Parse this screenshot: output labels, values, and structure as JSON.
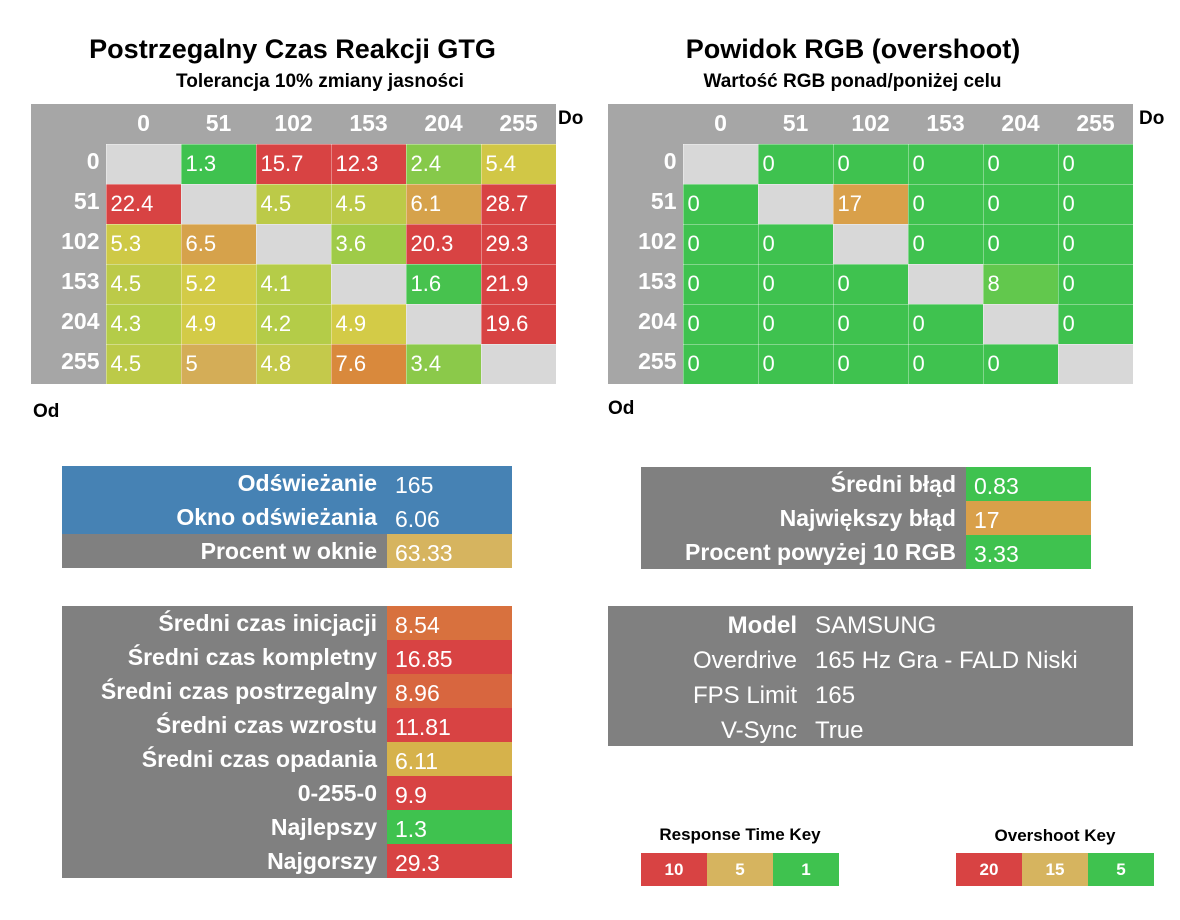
{
  "colors": {
    "green": "#3fc24f",
    "red": "#d84343",
    "gold": "#d6b45f",
    "orange": "#d9893c",
    "gray_header": "#a6a6a6",
    "diag": "#d8d8d8",
    "blue": "#4682b4",
    "dark_gray": "#808080"
  },
  "chart_data": [
    {
      "type": "heatmap",
      "title": "Postrzegalny Czas Reakcji GTG",
      "subtitle": "Tolerancja 10% zmiany jasności",
      "xlabel": "Do",
      "ylabel": "Od",
      "x": [
        "0",
        "51",
        "102",
        "153",
        "204",
        "255"
      ],
      "y": [
        "0",
        "51",
        "102",
        "153",
        "204",
        "255"
      ],
      "values": [
        [
          null,
          "1.3",
          "15.7",
          "12.3",
          "2.4",
          "5.4"
        ],
        [
          "22.4",
          null,
          "4.5",
          "4.5",
          "6.1",
          "28.7"
        ],
        [
          "5.3",
          "6.5",
          null,
          "3.6",
          "20.3",
          "29.3"
        ],
        [
          "4.5",
          "5.2",
          "4.1",
          null,
          "1.6",
          "21.9"
        ],
        [
          "4.3",
          "4.9",
          "4.2",
          "4.9",
          null,
          "19.6"
        ],
        [
          "4.5",
          "5",
          "4.8",
          "7.6",
          "3.4",
          null
        ]
      ],
      "cell_colors": [
        [
          null,
          "#3fc24f",
          "#d84343",
          "#d84343",
          "#86c94a",
          "#d1c746"
        ],
        [
          "#d84343",
          null,
          "#bcca48",
          "#bcca48",
          "#d6a24b",
          "#d84343"
        ],
        [
          "#cec946",
          "#d6a24b",
          null,
          "#9fcb48",
          "#d84343",
          "#d84343"
        ],
        [
          "#bcca48",
          "#d3cb47",
          "#b5cc48",
          null,
          "#47c24e",
          "#d84343"
        ],
        [
          "#b4cc48",
          "#d3cb47",
          "#b4cc48",
          "#d3cb47",
          null,
          "#d84343"
        ],
        [
          "#bcca48",
          "#d4ad57",
          "#c4c94b",
          "#d9893c",
          "#8bc94a",
          null
        ]
      ]
    },
    {
      "type": "heatmap",
      "title": "Powidok RGB (overshoot)",
      "subtitle": "Wartość RGB ponad/poniżej celu",
      "xlabel": "Do",
      "ylabel": "Od",
      "x": [
        "0",
        "51",
        "102",
        "153",
        "204",
        "255"
      ],
      "y": [
        "0",
        "51",
        "102",
        "153",
        "204",
        "255"
      ],
      "values": [
        [
          null,
          "0",
          "0",
          "0",
          "0",
          "0"
        ],
        [
          "0",
          null,
          "17",
          "0",
          "0",
          "0"
        ],
        [
          "0",
          "0",
          null,
          "0",
          "0",
          "0"
        ],
        [
          "0",
          "0",
          "0",
          null,
          "8",
          "0"
        ],
        [
          "0",
          "0",
          "0",
          "0",
          null,
          "0"
        ],
        [
          "0",
          "0",
          "0",
          "0",
          "0",
          null
        ]
      ],
      "cell_colors": [
        [
          null,
          "#3fc24f",
          "#3fc24f",
          "#3fc24f",
          "#3fc24f",
          "#3fc24f"
        ],
        [
          "#3fc24f",
          null,
          "#d9a04a",
          "#3fc24f",
          "#3fc24f",
          "#3fc24f"
        ],
        [
          "#3fc24f",
          "#3fc24f",
          null,
          "#3fc24f",
          "#3fc24f",
          "#3fc24f"
        ],
        [
          "#3fc24f",
          "#3fc24f",
          "#3fc24f",
          null,
          "#62c84d",
          "#3fc24f"
        ],
        [
          "#3fc24f",
          "#3fc24f",
          "#3fc24f",
          "#3fc24f",
          null,
          "#3fc24f"
        ],
        [
          "#3fc24f",
          "#3fc24f",
          "#3fc24f",
          "#3fc24f",
          "#3fc24f",
          null
        ]
      ]
    }
  ],
  "refresh": {
    "rows": [
      {
        "label": "Odświeżanie",
        "value": "165",
        "label_bg": "#4682b4",
        "value_bg": "#4682b4"
      },
      {
        "label": "Okno odświeżania",
        "value": "6.06",
        "label_bg": "#4682b4",
        "value_bg": "#4682b4"
      },
      {
        "label": "Procent w oknie",
        "value": "63.33",
        "label_bg": "#808080",
        "value_bg": "#d6b45f"
      }
    ]
  },
  "overshoot_stats": {
    "rows": [
      {
        "label": "Średni błąd",
        "value": "0.83",
        "value_bg": "#3fc24f"
      },
      {
        "label": "Największy błąd",
        "value": "17",
        "value_bg": "#d9a04a"
      },
      {
        "label": "Procent powyżej 10 RGB",
        "value": "3.33",
        "value_bg": "#3fc24f"
      }
    ]
  },
  "times": {
    "rows": [
      {
        "label": "Średni czas inicjacji",
        "value": "8.54",
        "value_bg": "#d8713e"
      },
      {
        "label": "Średni czas kompletny",
        "value": "16.85",
        "value_bg": "#d84343"
      },
      {
        "label": "Średni czas postrzegalny",
        "value": "8.96",
        "value_bg": "#d8663f"
      },
      {
        "label": "Średni czas wzrostu",
        "value": "11.81",
        "value_bg": "#d84343"
      },
      {
        "label": "Średni czas opadania",
        "value": "6.11",
        "value_bg": "#d6b24b"
      },
      {
        "label": "0-255-0",
        "value": "9.9",
        "value_bg": "#d84343"
      },
      {
        "label": "Najlepszy",
        "value": "1.3",
        "value_bg": "#3fc24f"
      },
      {
        "label": "Najgorszy",
        "value": "29.3",
        "value_bg": "#d84343"
      }
    ]
  },
  "info": {
    "rows": [
      {
        "label": "Model",
        "value": "SAMSUNG",
        "bold": true
      },
      {
        "label": "Overdrive",
        "value": "165 Hz Gra - FALD Niski",
        "bold": false
      },
      {
        "label": "FPS Limit",
        "value": "165",
        "bold": false
      },
      {
        "label": "V-Sync",
        "value": "True",
        "bold": false
      }
    ]
  },
  "response_key": {
    "title": "Response Time Key",
    "items": [
      {
        "label": "10",
        "color": "#d84343"
      },
      {
        "label": "5",
        "color": "#d6b45f"
      },
      {
        "label": "1",
        "color": "#3fc24f"
      }
    ]
  },
  "overshoot_key": {
    "title": "Overshoot Key",
    "items": [
      {
        "label": "20",
        "color": "#d84343"
      },
      {
        "label": "15",
        "color": "#d6b45f"
      },
      {
        "label": "5",
        "color": "#3fc24f"
      }
    ]
  }
}
